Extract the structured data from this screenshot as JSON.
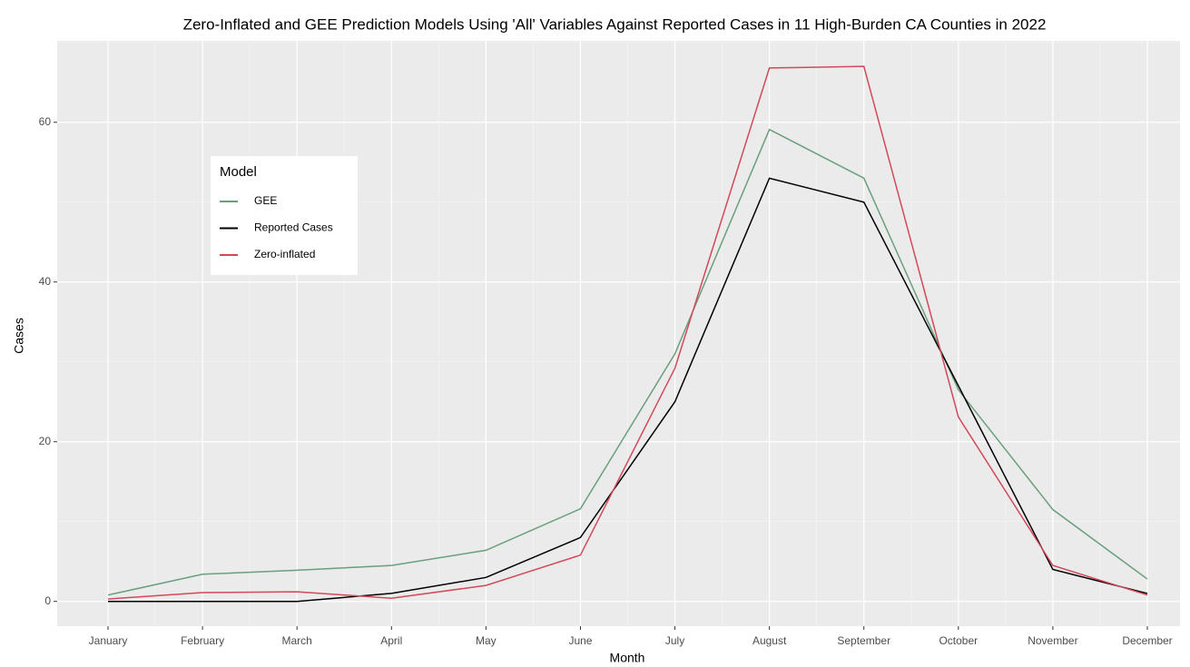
{
  "chart_data": {
    "type": "line",
    "title": "Zero-Inflated and GEE Prediction Models Using 'All' Variables Against Reported Cases in 11 High-Burden CA Counties in 2022",
    "x_label": "Month",
    "y_label": "Cases",
    "categories": [
      "January",
      "February",
      "March",
      "April",
      "May",
      "June",
      "July",
      "August",
      "September",
      "October",
      "November",
      "December"
    ],
    "series": [
      {
        "name": "GEE",
        "color": "#6a9f7e",
        "values": [
          0.8,
          3.4,
          3.9,
          4.5,
          6.4,
          11.6,
          31,
          59.1,
          53,
          26.5,
          11.5,
          2.8
        ]
      },
      {
        "name": "Reported Cases",
        "color": "#000000",
        "values": [
          0,
          0,
          0,
          1,
          3,
          8,
          25,
          53,
          50,
          27,
          4,
          1
        ]
      },
      {
        "name": "Zero-inflated",
        "color": "#d1495b",
        "values": [
          0.3,
          1.1,
          1.2,
          0.4,
          2.0,
          5.8,
          29.2,
          66.8,
          67.0,
          23.1,
          4.5,
          0.8
        ]
      }
    ],
    "legend_title": "Model",
    "legend": "top-left",
    "ylim": [
      -3.1,
      70.2
    ],
    "yticks": [
      0,
      20,
      40,
      60
    ],
    "grid": true
  }
}
